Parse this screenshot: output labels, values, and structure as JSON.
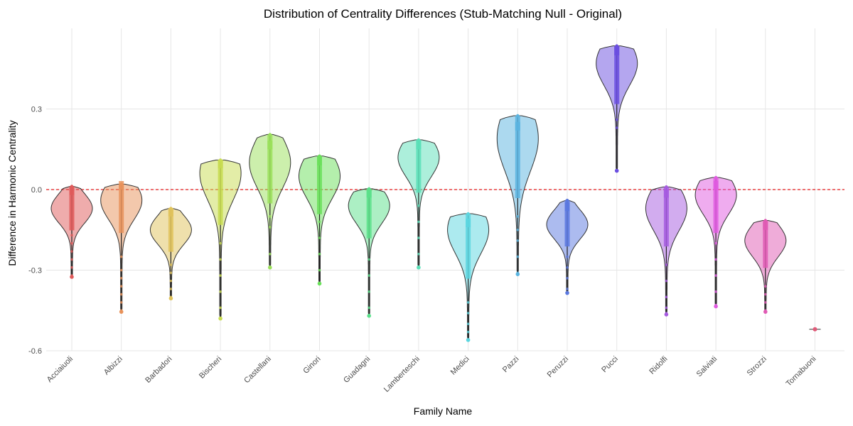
{
  "chart_data": {
    "type": "violin",
    "title": "Distribution of Centrality Differences (Stub-Matching Null - Original)",
    "xlabel": "Family Name",
    "ylabel": "Difference in Harmonic Centrality",
    "ylim": [
      -0.6,
      0.6
    ],
    "yticks": [
      -0.6,
      -0.3,
      0.0,
      0.3
    ],
    "ytick_labels": [
      "-0.6",
      "-0.3",
      "0.0",
      "0.3"
    ],
    "reference_line": {
      "y": 0.0,
      "color": "#e31a1c",
      "style": "dashed"
    },
    "grid": true,
    "series": [
      {
        "name": "Acciaiuoli",
        "color": "#e05a5a",
        "min": -0.325,
        "max": 0.012,
        "q1": -0.12,
        "median": -0.07,
        "q3": -0.02,
        "mode": -0.07,
        "outliers": [
          -0.17,
          -0.2,
          -0.23,
          -0.26,
          -0.29,
          -0.32
        ]
      },
      {
        "name": "Albizzi",
        "color": "#e8925a",
        "min": -0.455,
        "max": 0.02,
        "q1": -0.13,
        "median": -0.06,
        "q3": 0.0,
        "mode": -0.04,
        "outliers": [
          -0.25,
          -0.3,
          -0.33,
          -0.36,
          -0.39,
          -0.42,
          -0.45
        ]
      },
      {
        "name": "Barbadori",
        "color": "#e0c25a",
        "min": -0.405,
        "max": -0.07,
        "q1": -0.2,
        "median": -0.15,
        "q3": -0.1,
        "mode": -0.15,
        "outliers": [
          -0.28,
          -0.31,
          -0.34,
          -0.37,
          -0.4
        ]
      },
      {
        "name": "Bischeri",
        "color": "#c8dc50",
        "min": -0.48,
        "max": 0.11,
        "q1": -0.1,
        "median": 0.02,
        "q3": 0.08,
        "mode": 0.06,
        "outliers": [
          -0.2,
          -0.26,
          -0.32,
          -0.38,
          -0.44,
          -0.48
        ]
      },
      {
        "name": "Castellani",
        "color": "#9ae05a",
        "min": -0.29,
        "max": 0.205,
        "q1": -0.02,
        "median": 0.08,
        "q3": 0.15,
        "mode": 0.1,
        "outliers": [
          -0.1,
          -0.14,
          -0.24
        ]
      },
      {
        "name": "Ginori",
        "color": "#6ae05a",
        "min": -0.35,
        "max": 0.125,
        "q1": -0.06,
        "median": 0.03,
        "q3": 0.09,
        "mode": 0.05,
        "outliers": [
          -0.12,
          -0.18,
          -0.24,
          -0.3,
          -0.35
        ]
      },
      {
        "name": "Guadagni",
        "color": "#5ae08a",
        "min": -0.47,
        "max": 0.003,
        "q1": -0.15,
        "median": -0.08,
        "q3": -0.03,
        "mode": -0.06,
        "outliers": [
          -0.26,
          -0.32,
          -0.38,
          -0.44,
          -0.47
        ]
      },
      {
        "name": "Lamberteschi",
        "color": "#5ae0b8",
        "min": -0.29,
        "max": 0.185,
        "q1": 0.02,
        "median": 0.1,
        "q3": 0.15,
        "mode": 0.12,
        "outliers": [
          -0.06,
          -0.12,
          -0.18,
          -0.24,
          -0.29
        ]
      },
      {
        "name": "Medici",
        "color": "#5ad6e0",
        "min": -0.56,
        "max": -0.09,
        "q1": -0.3,
        "median": -0.2,
        "q3": -0.14,
        "mode": -0.15,
        "outliers": [
          -0.42,
          -0.46,
          -0.5,
          -0.53,
          -0.56
        ]
      },
      {
        "name": "Pazzi",
        "color": "#5ab4e0",
        "min": -0.315,
        "max": 0.275,
        "q1": 0.0,
        "median": 0.13,
        "q3": 0.22,
        "mode": 0.19,
        "outliers": [
          -0.1,
          -0.15,
          -0.19,
          -0.25,
          -0.31
        ]
      },
      {
        "name": "Peruzzi",
        "color": "#5a78e0",
        "min": -0.385,
        "max": -0.04,
        "q1": -0.18,
        "median": -0.13,
        "q3": -0.08,
        "mode": -0.13,
        "outliers": [
          -0.25,
          -0.29,
          -0.33,
          -0.37
        ]
      },
      {
        "name": "Pucci",
        "color": "#6a4ee0",
        "min": 0.07,
        "max": 0.535,
        "q1": 0.35,
        "median": 0.45,
        "q3": 0.5,
        "mode": 0.47,
        "outliers": [
          0.23,
          0.26
        ]
      },
      {
        "name": "Ridolfi",
        "color": "#a65ae0",
        "min": -0.465,
        "max": 0.01,
        "q1": -0.18,
        "median": -0.09,
        "q3": -0.03,
        "mode": -0.07,
        "outliers": [
          -0.28,
          -0.34,
          -0.4,
          -0.44,
          -0.46
        ]
      },
      {
        "name": "Salviati",
        "color": "#e05ae0",
        "min": -0.435,
        "max": 0.045,
        "q1": -0.13,
        "median": -0.04,
        "q3": 0.0,
        "mode": -0.02,
        "outliers": [
          -0.2,
          -0.26,
          -0.32,
          -0.38,
          -0.43
        ]
      },
      {
        "name": "Strozzi",
        "color": "#e05ab4",
        "min": -0.455,
        "max": -0.115,
        "q1": -0.26,
        "median": -0.2,
        "q3": -0.15,
        "mode": -0.19,
        "outliers": [
          -0.36,
          -0.39,
          -0.42,
          -0.45
        ]
      },
      {
        "name": "Tornabuoni",
        "color": "#e05a78",
        "min": -0.52,
        "max": -0.52,
        "q1": -0.52,
        "median": -0.52,
        "q3": -0.52,
        "mode": -0.52,
        "outliers": []
      }
    ]
  }
}
